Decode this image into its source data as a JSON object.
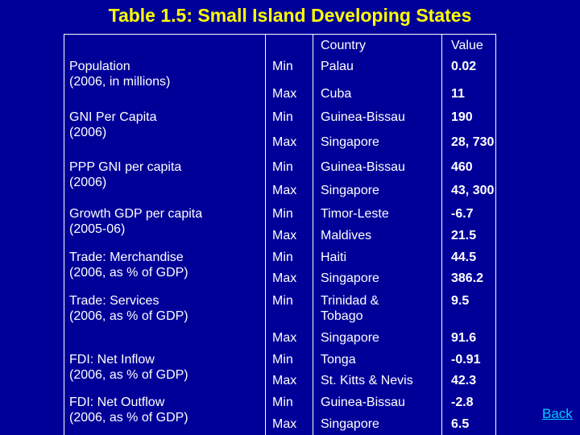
{
  "title": "Table 1.5: Small Island Developing States",
  "header": {
    "country": "Country",
    "value": "Value"
  },
  "rows": [
    {
      "category": "Population\n(2006, in millions)",
      "min": {
        "label": "Min",
        "country": "Palau",
        "value": "0.02"
      },
      "max": {
        "label": "Max",
        "country": "Cuba",
        "value": "11"
      }
    },
    {
      "category": "GNI Per Capita\n(2006)",
      "min": {
        "label": "Min",
        "country": "Guinea-Bissau",
        "value": "190"
      },
      "max": {
        "label": "Max",
        "country": "Singapore",
        "value": "28, 730"
      }
    },
    {
      "category": "PPP GNI per capita\n(2006)",
      "min": {
        "label": "Min",
        "country": "Guinea-Bissau",
        "value": "460"
      },
      "max": {
        "label": "Max",
        "country": "Singapore",
        "value": "43, 300"
      }
    },
    {
      "category": "Growth GDP per capita\n(2005-06)",
      "min": {
        "label": "Min",
        "country": "Timor-Leste",
        "value": "-6.7"
      },
      "max": {
        "label": "Max",
        "country": "Maldives",
        "value": "21.5"
      }
    },
    {
      "category": "Trade: Merchandise\n(2006, as % of GDP)",
      "min": {
        "label": "Min",
        "country": "Haiti",
        "value": "44.5"
      },
      "max": {
        "label": "Max",
        "country": "Singapore",
        "value": "386.2"
      }
    },
    {
      "category": "Trade: Services\n(2006, as % of GDP)",
      "min": {
        "label": "Min",
        "country": "Trinidad &\nTobago",
        "value": "9.5"
      },
      "max": {
        "label": "Max",
        "country": "Singapore",
        "value": "91.6"
      }
    },
    {
      "category": "FDI: Net Inflow\n(2006, as % of GDP)",
      "min": {
        "label": "Min",
        "country": "Tonga",
        "value": "-0.91"
      },
      "max": {
        "label": "Max",
        "country": "St. Kitts & Nevis",
        "value": "42.3"
      }
    },
    {
      "category": "FDI: Net Outflow\n(2006, as % of GDP)",
      "min": {
        "label": "Min",
        "country": "Guinea-Bissau",
        "value": "-2.8"
      },
      "max": {
        "label": "Max",
        "country": "Singapore",
        "value": "6.5"
      }
    }
  ],
  "back_label": "Back",
  "colors": {
    "background": "#000099",
    "title": "#ffff00",
    "text": "#ffffff",
    "link": "#00ccff"
  }
}
